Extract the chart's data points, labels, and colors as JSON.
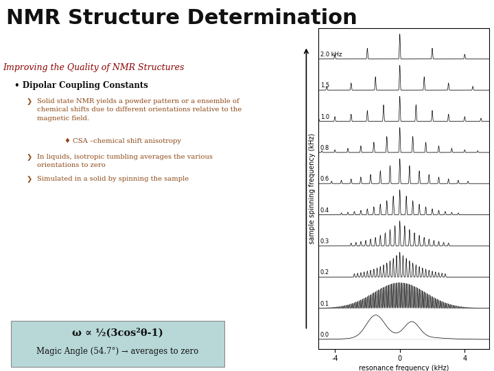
{
  "title": "NMR Structure Determination",
  "subtitle": "Improving the Quality of NMR Structures",
  "bullet1": "Dipolar Coupling Constants",
  "sub1_text": "Solid state NMR yields a powder pattern or a ensemble of\nchemical shifts due to different orientations relative to the\nmagnetic field.",
  "sub1b": "♦ CSA –chemical shift anisotropy",
  "sub2_text": "In liquids, isotropic tumbling averages the various\norientations to zero",
  "sub3_text": "Simulated in a solid by spinning the sample",
  "box_line1": "ω ∝ ½(3cos²θ-1)",
  "box_line2": "Magic Angle (54.7°) → averages to zero",
  "spinning_rates_top_to_bottom": [
    2.0,
    1.5,
    1.0,
    0.8,
    0.6,
    0.4,
    0.3,
    0.2,
    0.1,
    0.0
  ],
  "bg_color": "#ffffff",
  "title_color": "#111111",
  "subtitle_color": "#8B0000",
  "bullet_color": "#111111",
  "sub_text_color": "#8B4513",
  "box_bg": "#b8d8d8",
  "box_edge": "#888888",
  "xlabel": "resonance frequency (kHz)",
  "ylabel": "sample spinning frequency (kHz)",
  "plot_xlim": [
    -5,
    5.5
  ],
  "plot_xticks": [
    -4,
    0,
    4
  ],
  "plot_xtick_labels": [
    "-4",
    "0",
    "4"
  ]
}
